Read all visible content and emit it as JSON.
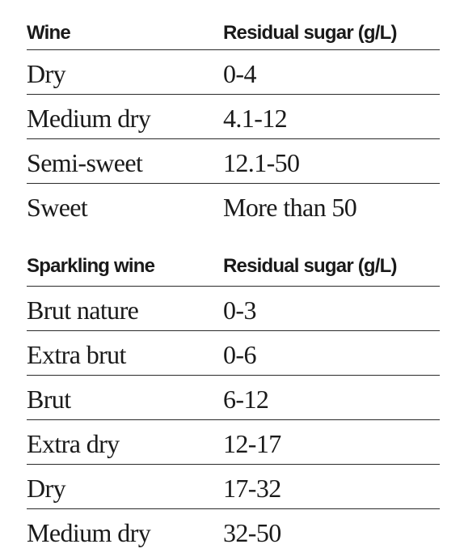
{
  "wine_table": {
    "headers": [
      "Wine",
      "Residual sugar (g/L)"
    ],
    "rows": [
      [
        "Dry",
        "0-4"
      ],
      [
        "Medium dry",
        "4.1-12"
      ],
      [
        "Semi-sweet",
        "12.1-50"
      ],
      [
        "Sweet",
        "More than 50"
      ]
    ]
  },
  "sparkling_table": {
    "headers": [
      "Sparkling wine",
      "Residual sugar (g/L)"
    ],
    "rows": [
      [
        "Brut nature",
        "0-3"
      ],
      [
        "Extra brut",
        "0-6"
      ],
      [
        "Brut",
        "6-12"
      ],
      [
        "Extra dry",
        "12-17"
      ],
      [
        "Dry",
        "17-32"
      ],
      [
        "Medium dry",
        "32-50"
      ]
    ]
  }
}
